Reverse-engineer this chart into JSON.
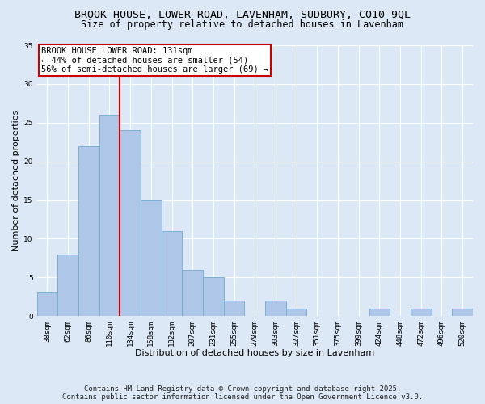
{
  "title_line1": "BROOK HOUSE, LOWER ROAD, LAVENHAM, SUDBURY, CO10 9QL",
  "title_line2": "Size of property relative to detached houses in Lavenham",
  "xlabel": "Distribution of detached houses by size in Lavenham",
  "ylabel": "Number of detached properties",
  "categories": [
    "38sqm",
    "62sqm",
    "86sqm",
    "110sqm",
    "134sqm",
    "158sqm",
    "182sqm",
    "207sqm",
    "231sqm",
    "255sqm",
    "279sqm",
    "303sqm",
    "327sqm",
    "351sqm",
    "375sqm",
    "399sqm",
    "424sqm",
    "448sqm",
    "472sqm",
    "496sqm",
    "520sqm"
  ],
  "values": [
    3,
    8,
    22,
    26,
    24,
    15,
    11,
    6,
    5,
    2,
    0,
    2,
    1,
    0,
    0,
    0,
    1,
    0,
    1,
    0,
    1
  ],
  "bar_color": "#aec6e8",
  "bar_edge_color": "#7aafd4",
  "vline_x_index": 4,
  "vline_color": "#cc0000",
  "annotation_text": "BROOK HOUSE LOWER ROAD: 131sqm\n← 44% of detached houses are smaller (54)\n56% of semi-detached houses are larger (69) →",
  "annotation_box_color": "#ffffff",
  "annotation_box_edge_color": "#cc0000",
  "ylim": [
    0,
    35
  ],
  "yticks": [
    0,
    5,
    10,
    15,
    20,
    25,
    30,
    35
  ],
  "background_color": "#dce8f5",
  "grid_color": "#ffffff",
  "footer_text": "Contains HM Land Registry data © Crown copyright and database right 2025.\nContains public sector information licensed under the Open Government Licence v3.0.",
  "title_fontsize": 9.5,
  "subtitle_fontsize": 8.5,
  "axis_label_fontsize": 8,
  "tick_fontsize": 6.5,
  "annotation_fontsize": 7.5,
  "footer_fontsize": 6.5
}
